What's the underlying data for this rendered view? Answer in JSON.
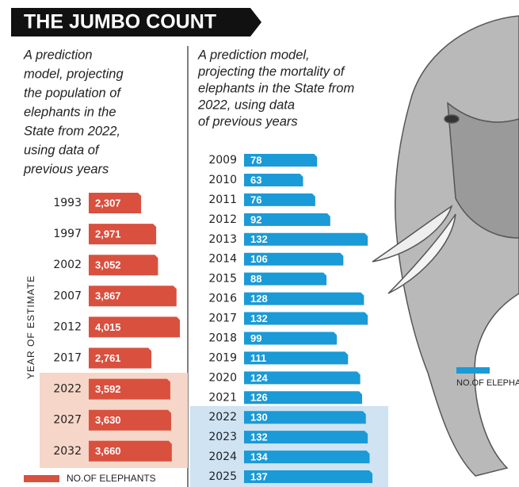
{
  "title": "THE JUMBO COUNT",
  "chart_data": [
    {
      "type": "hbar",
      "subtitle_lines": [
        "A prediction",
        "model, projecting",
        "the population of",
        "elephants in the",
        "State from 2022,",
        "using data of",
        "previous years"
      ],
      "y_label": "YEAR OF ESTIMATE",
      "categories": [
        "1993",
        "1997",
        "2002",
        "2007",
        "2012",
        "2017",
        "2022",
        "2027",
        "2032"
      ],
      "series": [
        {
          "name": "NO.OF ELEPHANTS",
          "color": "#d9503f",
          "values": [
            2307,
            2971,
            3052,
            3867,
            4015,
            2761,
            3592,
            3630,
            3660
          ],
          "value_labels": [
            "2,307",
            "2,971",
            "3,052",
            "3,867",
            "4,015",
            "2,761",
            "3,592",
            "3,630",
            "3,660"
          ]
        }
      ]
    },
    {
      "type": "hbar",
      "subtitle_lines": [
        "A prediction model,",
        "projecting the mortality of",
        "elephants in the State from",
        "2022, using data",
        "of previous years"
      ],
      "categories": [
        "2009",
        "2010",
        "2011",
        "2012",
        "2013",
        "2014",
        "2015",
        "2016",
        "2017",
        "2018",
        "2019",
        "2020",
        "2021",
        "2022",
        "2023",
        "2024",
        "2025"
      ],
      "series": [
        {
          "name": "NO.OF ELEPHANTS",
          "color": "#1a9ad6",
          "values": [
            78,
            63,
            76,
            92,
            132,
            106,
            88,
            128,
            132,
            99,
            111,
            124,
            126,
            130,
            132,
            134,
            137
          ]
        }
      ]
    }
  ]
}
